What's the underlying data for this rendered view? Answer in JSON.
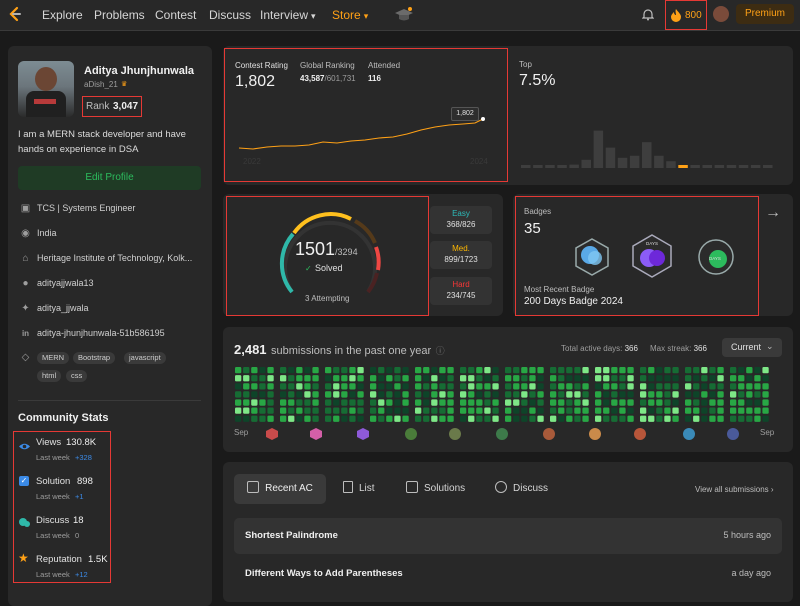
{
  "nav": {
    "items": [
      "Explore",
      "Problems",
      "Contest",
      "Discuss",
      "Interview",
      "Store"
    ],
    "coins": "800",
    "premium": "Premium"
  },
  "profile": {
    "name": "Aditya Jhunjhunwala",
    "username": "aDish_21",
    "rank_label": "Rank",
    "rank": "3,047",
    "bio": "I am a MERN stack developer and have hands on experience in DSA",
    "edit_profile": "Edit Profile",
    "job": "TCS | Systems Engineer",
    "country": "India",
    "school": "Heritage Institute of Technology, Kolk...",
    "github": "adityajjwala13",
    "twitter": "aditya_jjwala",
    "linkedin": "aditya-jhunjhunwala-51b586195",
    "skills": [
      "MERN",
      "Bootstrap",
      "javascript",
      "html",
      "css"
    ]
  },
  "community": {
    "title": "Community Stats",
    "items": [
      {
        "label": "Views",
        "value": "130.8K",
        "sub": "Last week",
        "delta": "+328",
        "delta_color": "#3b8ae6"
      },
      {
        "label": "Solution",
        "value": "898",
        "sub": "Last week",
        "delta": "+1",
        "delta_color": "#3b8ae6"
      },
      {
        "label": "Discuss",
        "value": "18",
        "sub": "Last week",
        "delta": "0",
        "delta_color": "#9e9e9e"
      },
      {
        "label": "Reputation",
        "value": "1.5K",
        "sub": "Last week",
        "delta": "+12",
        "delta_color": "#3b8ae6"
      }
    ]
  },
  "contest": {
    "rating_label": "Contest Rating",
    "rating": "1,802",
    "global_label": "Global Ranking",
    "global_rank": "43,587",
    "global_total": "/601,731",
    "attended_label": "Attended",
    "attended": "116",
    "tooltip": "1,802",
    "year_start": "2022",
    "year_end": "2024",
    "top_label": "Top",
    "top_value": "7.5%",
    "histogram": [
      0.03,
      0.03,
      0.03,
      0.03,
      0.05,
      0.12,
      0.55,
      0.3,
      0.15,
      0.18,
      0.38,
      0.18,
      0.1,
      0.04,
      0.03,
      0.03,
      0.03,
      0.03,
      0.03,
      0.03,
      0.03
    ],
    "highlight_index": 13
  },
  "solved": {
    "solved": "1501",
    "total": "/3294",
    "solved_label": "Solved",
    "attempting": "3 Attempting",
    "easy_label": "Easy",
    "easy": "368/826",
    "med_label": "Med.",
    "med": "899/1723",
    "hard_label": "Hard",
    "hard": "234/745"
  },
  "badges": {
    "label": "Badges",
    "count": "35",
    "recent_label": "Most Recent Badge",
    "recent": "200 Days Badge 2024",
    "badge_texts": [
      "",
      "DAYS",
      "DAYS"
    ]
  },
  "submissions": {
    "count": "2,481",
    "text": "submissions in the past one year",
    "active_label": "Total active days:",
    "active": "366",
    "streak_label": "Max streak:",
    "streak": "366",
    "dropdown": "Current",
    "month_start": "Sep",
    "month_end": "Sep",
    "colors": {
      "empty": "#333333",
      "l1": "#0e4429",
      "l2": "#166c34",
      "l3": "#28a745",
      "l4": "#7ee787"
    }
  },
  "recent": {
    "tabs": [
      "Recent AC",
      "List",
      "Solutions",
      "Discuss"
    ],
    "view_all": "View all submissions",
    "items": [
      {
        "title": "Shortest Palindrome",
        "time": "5 hours ago"
      },
      {
        "title": "Different Ways to Add Parentheses",
        "time": "a day ago"
      }
    ]
  }
}
